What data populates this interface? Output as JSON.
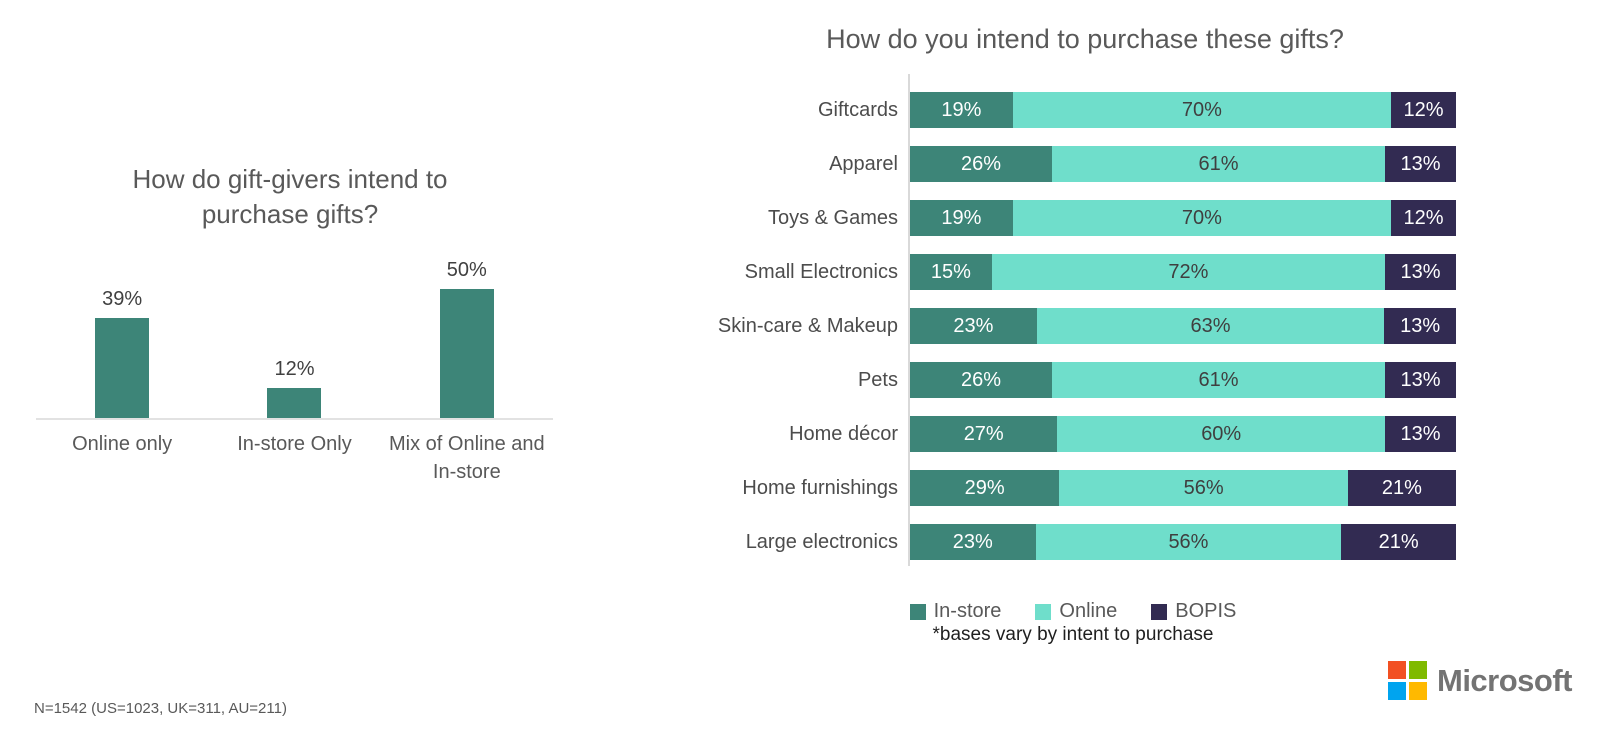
{
  "slide": {
    "sample_note": "N=1542 (US=1023, UK=311, AU=211)"
  },
  "brand": {
    "name": "Microsoft",
    "logo_colors": [
      "#F25022",
      "#7FBA00",
      "#00A4EF",
      "#FFB900"
    ],
    "text_color": "#737373"
  },
  "colors": {
    "title_text": "#595959",
    "value_text_dark": "#3F3F3F",
    "value_text_light": "#FFFFFF",
    "axis_line": "#DDDDDD"
  },
  "chart_data": [
    {
      "type": "bar",
      "orientation": "vertical",
      "title": "How do gift-givers intend to purchase gifts?",
      "categories": [
        "Online only",
        "In-store Only",
        "Mix of Online and In-store"
      ],
      "values": [
        39,
        12,
        50
      ],
      "data_labels": [
        "39%",
        "12%",
        "50%"
      ],
      "unit": "percent",
      "ylim": [
        0,
        55
      ],
      "grid": false,
      "bar_color": "#3D8578"
    },
    {
      "type": "bar",
      "orientation": "horizontal",
      "stacked": true,
      "normalized": true,
      "title": "How do you intend to purchase these gifts?",
      "categories": [
        "Giftcards",
        "Apparel",
        "Toys & Games",
        "Small Electronics",
        "Skin-care & Makeup",
        "Pets",
        "Home décor",
        "Home furnishings",
        "Large electronics"
      ],
      "series": [
        {
          "name": "In-store",
          "color": "#3D8578",
          "values": [
            19,
            26,
            19,
            15,
            23,
            26,
            27,
            29,
            23
          ]
        },
        {
          "name": "Online",
          "color": "#6FDECB",
          "values": [
            70,
            61,
            70,
            72,
            63,
            61,
            60,
            56,
            56
          ]
        },
        {
          "name": "BOPIS",
          "color": "#322B52",
          "values": [
            12,
            13,
            12,
            13,
            13,
            13,
            13,
            21,
            21
          ]
        }
      ],
      "unit": "percent",
      "legend_position": "bottom",
      "legend": [
        "In-store",
        "Online",
        "BOPIS"
      ],
      "footnote": "*bases vary by intent to purchase",
      "grid": false
    }
  ]
}
